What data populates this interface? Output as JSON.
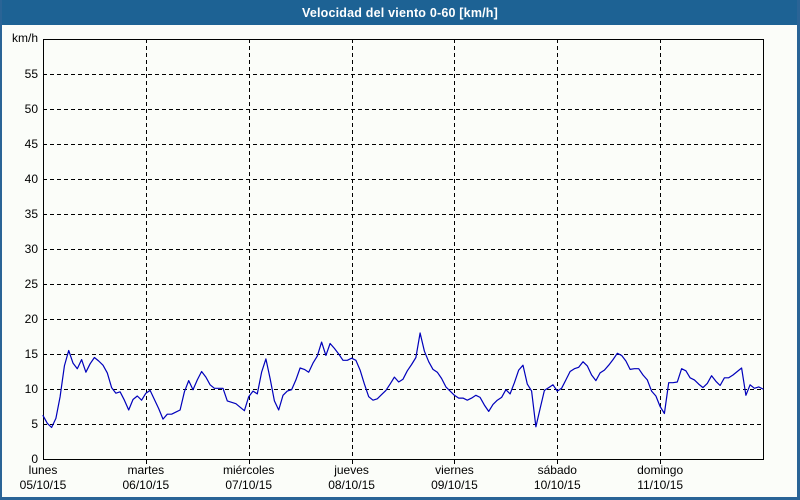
{
  "window": {
    "title": "Velocidad del viento 0-60 [km/h]"
  },
  "colors": {
    "title_bar_bg": "#1d6294",
    "title_text": "#ffffff",
    "frame_border": "#2a6496",
    "page_bg": "#fbfdf9",
    "grid": "#000000",
    "line": "#0000bb"
  },
  "chart_data": {
    "type": "line",
    "title": "Velocidad del viento 0-60 [km/h]",
    "xlabel": "",
    "ylabel": "km/h",
    "ylim": [
      0,
      60
    ],
    "ytick_step": 5,
    "yticks": [
      0,
      5,
      10,
      15,
      20,
      25,
      30,
      35,
      40,
      45,
      50,
      55
    ],
    "grid": true,
    "legend_position": "none",
    "line_color": "#0000bb",
    "days": [
      {
        "name": "lunes",
        "date": "05/10/15"
      },
      {
        "name": "martes",
        "date": "06/10/15"
      },
      {
        "name": "miércoles",
        "date": "07/10/15"
      },
      {
        "name": "jueves",
        "date": "08/10/15"
      },
      {
        "name": "viernes",
        "date": "09/10/15"
      },
      {
        "name": "sábado",
        "date": "10/10/15"
      },
      {
        "name": "domingo",
        "date": "11/10/15"
      }
    ],
    "x_unit": "hours",
    "points_per_day": 24,
    "series": [
      {
        "name": "velocidad del viento [km/h]",
        "values": [
          6.2,
          5.1,
          4.5,
          5.8,
          8.9,
          13.3,
          15.5,
          13.7,
          12.9,
          14.2,
          12.4,
          13.6,
          14.5,
          14.0,
          13.4,
          12.3,
          10.2,
          9.4,
          9.6,
          8.4,
          7.0,
          8.5,
          9.0,
          8.4,
          9.4,
          9.8,
          8.5,
          7.2,
          5.7,
          6.4,
          6.4,
          6.7,
          7.0,
          9.6,
          11.2,
          9.9,
          11.3,
          12.5,
          11.7,
          10.6,
          10.1,
          10.1,
          10.1,
          8.3,
          8.1,
          7.9,
          7.4,
          6.9,
          8.9,
          9.7,
          9.3,
          12.4,
          14.3,
          11.5,
          8.3,
          7.0,
          9.1,
          9.7,
          9.9,
          11.3,
          13.0,
          12.8,
          12.4,
          13.7,
          14.7,
          16.7,
          14.8,
          16.5,
          15.8,
          15.0,
          14.1,
          14.1,
          14.4,
          14.1,
          12.7,
          10.7,
          8.9,
          8.4,
          8.6,
          9.2,
          9.8,
          10.7,
          11.7,
          11.0,
          11.4,
          12.6,
          13.5,
          14.5,
          18.0,
          15.4,
          13.9,
          12.8,
          12.4,
          11.5,
          10.3,
          9.7,
          9.1,
          8.7,
          8.7,
          8.4,
          8.7,
          9.1,
          8.8,
          7.7,
          6.8,
          7.8,
          8.4,
          8.8,
          9.9,
          9.3,
          10.9,
          12.7,
          13.4,
          10.7,
          9.7,
          4.6,
          7.2,
          9.8,
          10.2,
          10.6,
          9.7,
          10.1,
          11.3,
          12.5,
          12.9,
          13.1,
          13.9,
          13.3,
          12.0,
          11.2,
          12.3,
          12.7,
          13.4,
          14.2,
          15.1,
          14.8,
          14.0,
          12.8,
          12.9,
          12.9,
          12.0,
          11.3,
          9.7,
          9.0,
          7.5,
          6.5,
          10.9,
          10.9,
          11.0,
          12.9,
          12.6,
          11.6,
          11.3,
          10.7,
          10.2,
          10.8,
          11.9,
          11.1,
          10.5,
          11.6,
          11.6,
          12.0,
          12.5,
          13.0,
          9.1,
          10.6,
          10.1,
          10.3,
          10.0
        ]
      }
    ]
  }
}
